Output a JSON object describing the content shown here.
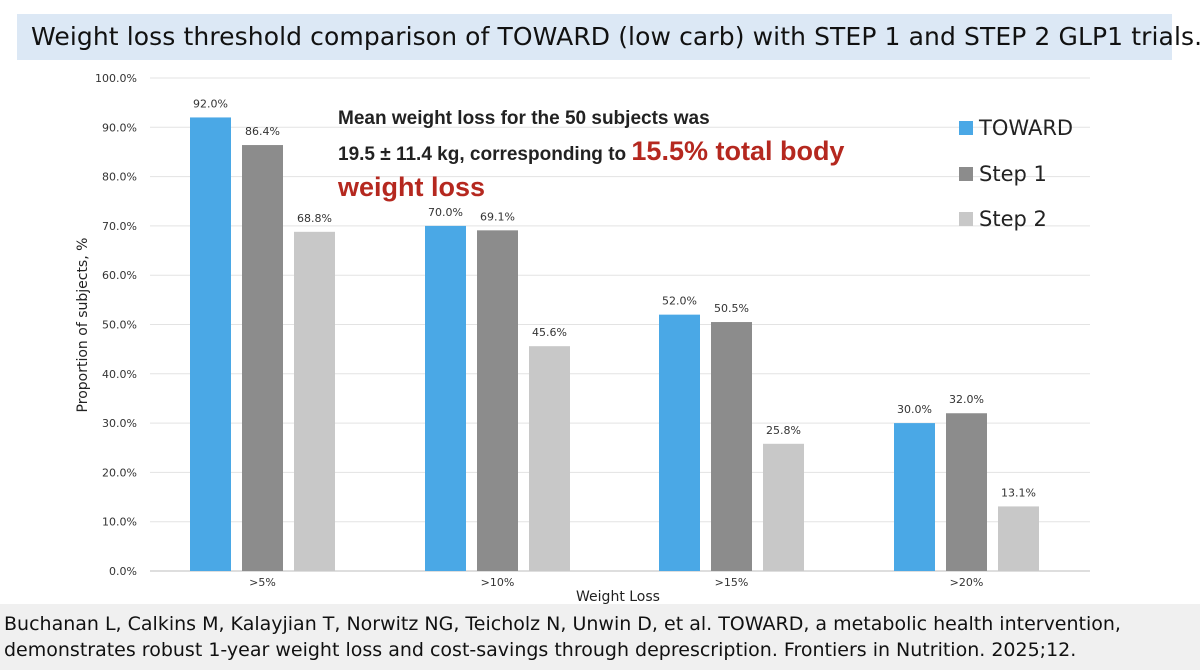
{
  "title": "Weight loss threshold comparison of TOWARD (low carb) with STEP 1 and STEP 2 GLP1 trials.",
  "annotation": {
    "line1": "Mean weight loss for the 50 subjects was",
    "line2_prefix": "19.5 ± 11.4 kg, corresponding to ",
    "line2_highlight": "15.5% total body",
    "line3_highlight": "weight loss"
  },
  "colors": {
    "TOWARD": "#4aa8e6",
    "Step 1": "#8c8c8c",
    "Step 2": "#c8c8c8",
    "highlight": "#b5281f"
  },
  "chart_data": {
    "type": "bar",
    "xlabel": "Weight Loss",
    "ylabel": "Proportion of subjects, %",
    "categories": [
      ">5%",
      ">10%",
      ">15%",
      ">20%"
    ],
    "ylim": [
      0,
      100
    ],
    "yticks": [
      0,
      10,
      20,
      30,
      40,
      50,
      60,
      70,
      80,
      90,
      100
    ],
    "ytick_labels": [
      "0.0%",
      "10.0%",
      "20.0%",
      "30.0%",
      "40.0%",
      "50.0%",
      "60.0%",
      "70.0%",
      "80.0%",
      "90.0%",
      "100.0%"
    ],
    "grid": "horizontal",
    "legend_position": "top-right",
    "series": [
      {
        "name": "TOWARD",
        "values": [
          92.0,
          70.0,
          52.0,
          30.0
        ],
        "labels": [
          "92.0%",
          "70.0%",
          "52.0%",
          "30.0%"
        ]
      },
      {
        "name": "Step 1",
        "values": [
          86.4,
          69.1,
          50.5,
          32.0
        ],
        "labels": [
          "86.4%",
          "69.1%",
          "50.5%",
          "32.0%"
        ]
      },
      {
        "name": "Step 2",
        "values": [
          68.8,
          45.6,
          25.8,
          13.1
        ],
        "labels": [
          "68.8%",
          "45.6%",
          "25.8%",
          "13.1%"
        ]
      }
    ]
  },
  "footer": {
    "citation": "Buchanan L, Calkins M, Kalayjian T, Norwitz NG, Teicholz N, Unwin D, et al. TOWARD, a metabolic health intervention, demonstrates robust 1-year weight loss and cost-savings through deprescription. Frontiers in Nutrition. 2025;12."
  }
}
